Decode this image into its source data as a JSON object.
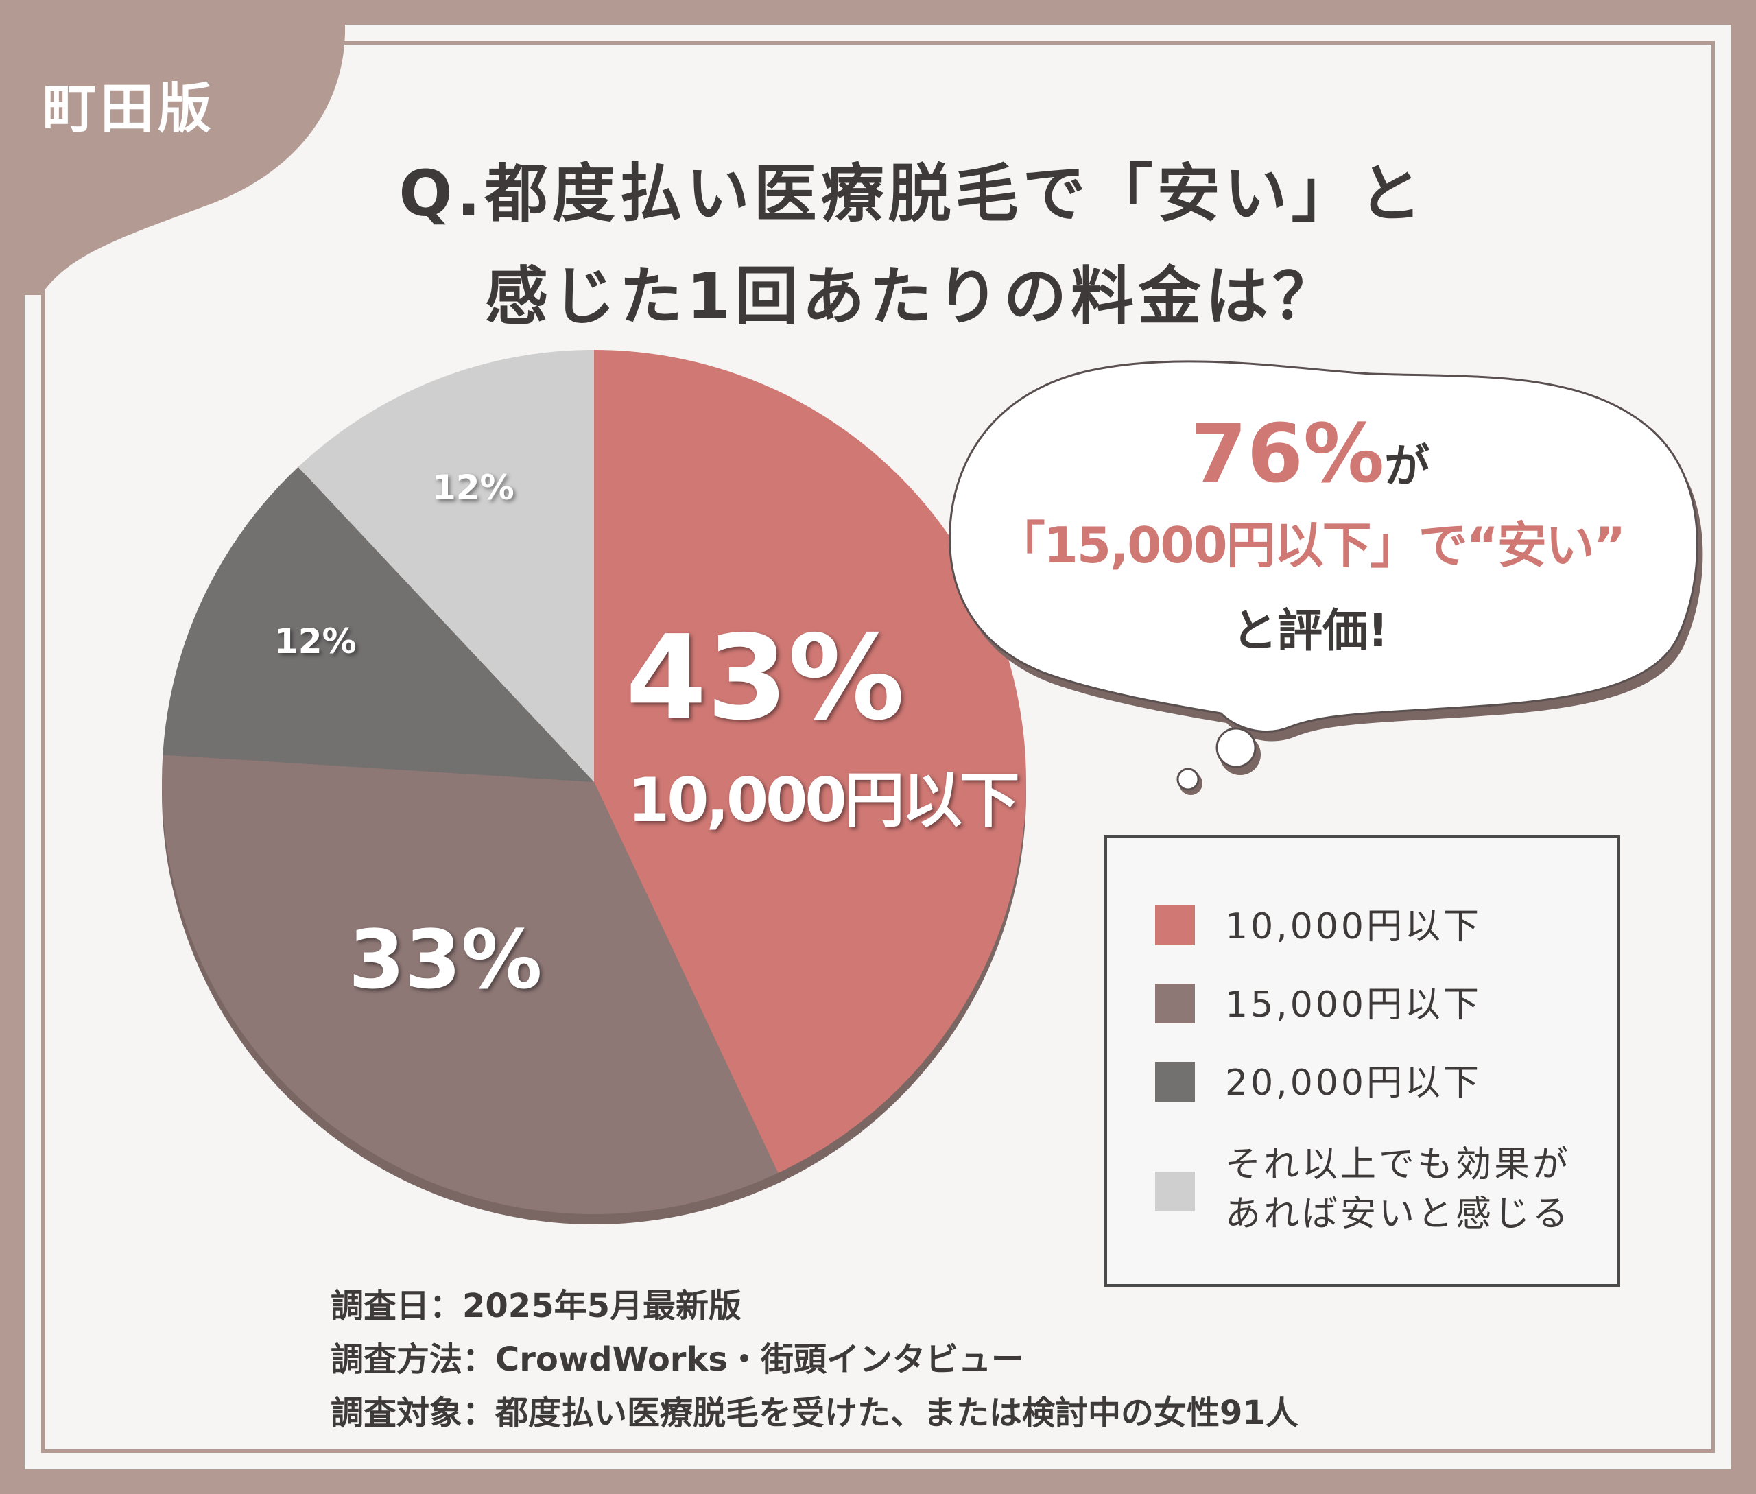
{
  "badge": "町田版",
  "title_line1": "Q.都度払い医療脱毛で「安い」と",
  "title_line2": "感じた1回あたりの料金は？",
  "callout": {
    "percent": "76%",
    "ga": "が",
    "quote": "「15,000円以下」で“安い”",
    "tail": "と評価!"
  },
  "pie_labels": {
    "main_percent": "43%",
    "main_caption": "10,000円以下",
    "second_percent": "33%",
    "third_percent": "12%",
    "fourth_percent": "12%"
  },
  "legend": [
    {
      "label": "10,000円以下",
      "color": "#cf7874"
    },
    {
      "label": "15,000円以下",
      "color": "#8e7876"
    },
    {
      "label": "20,000円以下",
      "color": "#737070"
    },
    {
      "label_line1": "それ以上でも効果が",
      "label_line2": "あれば安いと感じる",
      "color": "#cfcfcf"
    }
  ],
  "footer": {
    "date": "調査日：2025年5月最新版",
    "method": "調査方法：CrowdWorks・街頭インタビュー",
    "target": "調査対象：都度払い医療脱毛を受けた、または検討中の女性91人"
  },
  "colors": {
    "accent": "#cf7874",
    "frame": "#b39a93",
    "text": "#3e3a39"
  },
  "chart_data": {
    "type": "pie",
    "title": "Q.都度払い医療脱毛で「安い」と感じた1回あたりの料金は？",
    "categories": [
      "10,000円以下",
      "15,000円以下",
      "20,000円以下",
      "それ以上でも効果があれば安いと感じる"
    ],
    "values": [
      43,
      33,
      12,
      12
    ],
    "unit": "%",
    "colors": [
      "#cf7874",
      "#8e7876",
      "#737070",
      "#cfcfcf"
    ],
    "legend_position": "right"
  }
}
